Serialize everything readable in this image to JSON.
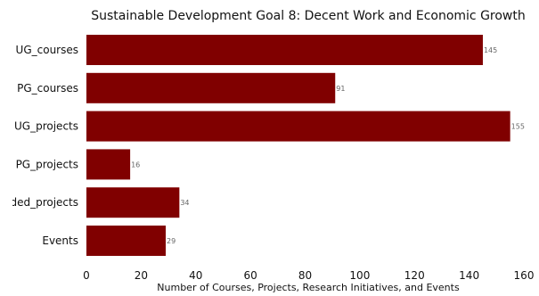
{
  "chart_data": {
    "type": "bar",
    "orientation": "horizontal",
    "title": "Sustainable Development Goal 8: Decent Work and Economic Growth",
    "xlabel": "Number of Courses, Projects, Research Initiatives, and Events",
    "ylabel": "",
    "categories": [
      "UG_courses",
      "PG_courses",
      "UG_projects",
      "PG_projects",
      "Funded_projects",
      "Events"
    ],
    "values": [
      145,
      91,
      155,
      16,
      34,
      29
    ],
    "xlim": [
      0,
      160
    ],
    "xticks": [
      0,
      20,
      40,
      60,
      80,
      100,
      120,
      140,
      160
    ],
    "bar_color": "#800000",
    "value_label_color": "#666666",
    "grid": false,
    "legend": "none"
  }
}
